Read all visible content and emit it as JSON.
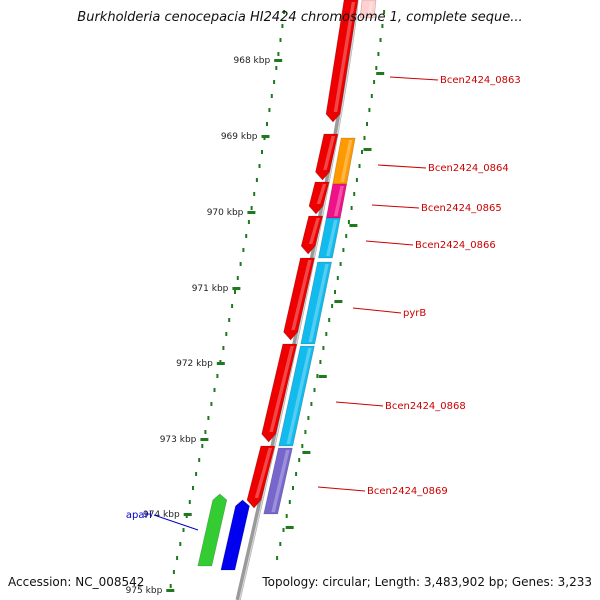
{
  "title": "Burkholderia cenocepacia HI2424 chromosome 1, complete seque...",
  "footer": {
    "accession": "Accession: NC_008542",
    "summary": "Topology: circular; Length: 3,483,902 bp; Genes: 3,233"
  },
  "colors": {
    "backbone": "#8a8a8a",
    "tick": "#1f7a1f",
    "label_red": "#cc0000",
    "label_blue": "#0000cc",
    "gene_red": "#ee0000",
    "gene_cyan": "#11bbee",
    "gene_orange": "#ff9900",
    "gene_magenta": "#ee1188",
    "gene_purple": "#7766cc",
    "gene_green": "#33cc33",
    "gene_blue": "#0000ee"
  },
  "scale": {
    "ticks": [
      {
        "label": "968 kbp"
      },
      {
        "label": "969 kbp"
      },
      {
        "label": "970 kbp"
      },
      {
        "label": "971 kbp"
      },
      {
        "label": "972 kbp"
      },
      {
        "label": "973 kbp"
      },
      {
        "label": "974 kbp"
      },
      {
        "label": "975 kbp"
      }
    ]
  },
  "features": {
    "inner_red": [
      1,
      2,
      3,
      4,
      5,
      6,
      7
    ],
    "outer": [
      {
        "color": "gene_cyan"
      },
      {
        "color": "gene_orange"
      },
      {
        "color": "gene_magenta"
      },
      {
        "color": "gene_cyan"
      },
      {
        "color": "gene_cyan"
      },
      {
        "color": "gene_cyan"
      },
      {
        "color": "gene_purple"
      }
    ],
    "outside": [
      {
        "color": "gene_green"
      },
      {
        "color": "gene_blue"
      }
    ]
  },
  "gene_labels": [
    {
      "text": "Bcen2424_0863",
      "color": "label_red"
    },
    {
      "text": "Bcen2424_0864",
      "color": "label_red"
    },
    {
      "text": "Bcen2424_0865",
      "color": "label_red"
    },
    {
      "text": "Bcen2424_0866",
      "color": "label_red"
    },
    {
      "text": "pyrB",
      "color": "label_red"
    },
    {
      "text": "Bcen2424_0868",
      "color": "label_red"
    },
    {
      "text": "Bcen2424_0869",
      "color": "label_red"
    },
    {
      "text": "apaH",
      "color": "label_blue"
    }
  ]
}
